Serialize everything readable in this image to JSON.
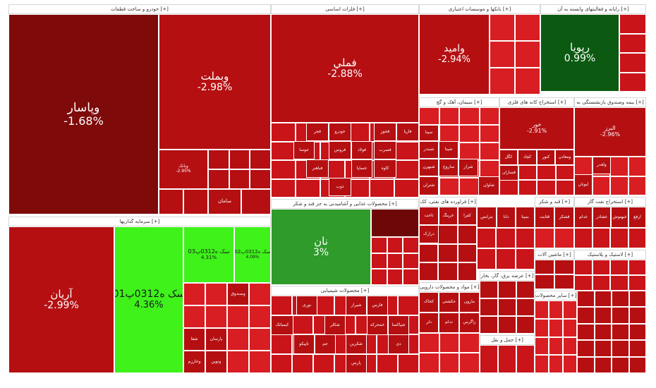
{
  "colors": {
    "deep_red": "#7e0a0a",
    "red": "#b50f12",
    "mid_red": "#c9141a",
    "bright_red": "#d81e22",
    "dark_green": "#0c5a12",
    "green": "#2e9b2a",
    "lime": "#3ef21a",
    "maroon": "#6e0808"
  },
  "chart_data": {
    "type": "treemap",
    "sections": [
      {
        "label": "خودرو و ساخت قطعات [+]"
      },
      {
        "label": "فلزات اساسی [+]"
      },
      {
        "label": "بانکها و موسسات اعتباری [+]"
      },
      {
        "label": "رایانه و فعالیتهای وابسته به آن [+]"
      },
      {
        "label": "سرمایه گذاریها [+]"
      },
      {
        "label": "محصولات غذایی و آشامیدنی به جز قند و شکر [+]"
      },
      {
        "label": "محصولات شیمیایی [+]"
      },
      {
        "label": "سیمان، آهک و گچ [+]"
      },
      {
        "label": "استخراج کانه های فلزی [+]"
      },
      {
        "label": "بیمه وصندوق بازنشستگی به [+]"
      },
      {
        "label": "مواد و محصولات دارویی [+]"
      },
      {
        "label": "فراورده های نفتی، کک [+]"
      },
      {
        "label": "عرضه برق، گاز، بخار [+]"
      },
      {
        "label": "قند و شکر [+]"
      },
      {
        "label": "استخراج نفت گاز [+]"
      },
      {
        "label": "ماشین آلات [+]"
      },
      {
        "label": "لاستیک و پلاستیک [+]"
      },
      {
        "label": "حمل و نقل [+]"
      },
      {
        "label": "سایر محصولات [+]"
      }
    ],
    "tiles": [
      {
        "name": "وپاسار",
        "change": "-1.68%"
      },
      {
        "name": "وبملت",
        "change": "-2.98%"
      },
      {
        "name": "فملي",
        "change": "-2.88%"
      },
      {
        "name": "وامید",
        "change": "-2.94%"
      },
      {
        "name": "رپویا",
        "change": "0.99%"
      },
      {
        "name": "آریان",
        "change": "-2.99%"
      },
      {
        "name": "سک ه0312پ01",
        "change": "4.36%"
      },
      {
        "name": "سک ه0312پ03",
        "change": "4.31%"
      },
      {
        "name": "سک ه0312پ02",
        "change": "4.09%"
      },
      {
        "name": "نان",
        "change": "3%"
      },
      {
        "name": "خور",
        "change": "-2.91%"
      },
      {
        "name": "البرز",
        "change": "-2.96%"
      },
      {
        "name": "وبانک",
        "change": "-2.95%"
      },
      {
        "name": "سامان",
        "change": ""
      },
      {
        "name": "فولاد",
        "change": ""
      },
      {
        "name": "فخوز",
        "change": ""
      },
      {
        "name": "خودرو",
        "change": ""
      },
      {
        "name": "فاریا",
        "change": ""
      },
      {
        "name": "فجر",
        "change": ""
      },
      {
        "name": "خساپا",
        "change": ""
      },
      {
        "name": "فسرب",
        "change": ""
      },
      {
        "name": "کاوه",
        "change": ""
      },
      {
        "name": "ذوب",
        "change": ""
      },
      {
        "name": "فباهنر",
        "change": ""
      },
      {
        "name": "شبندر",
        "change": ""
      },
      {
        "name": "شبهرن",
        "change": ""
      },
      {
        "name": "شتران",
        "change": ""
      },
      {
        "name": "شپنا",
        "change": ""
      },
      {
        "name": "شراز",
        "change": ""
      },
      {
        "name": "شاوان",
        "change": ""
      },
      {
        "name": "شیراز",
        "change": ""
      },
      {
        "name": "پارس",
        "change": ""
      },
      {
        "name": "فارس",
        "change": ""
      },
      {
        "name": "شکربن",
        "change": ""
      },
      {
        "name": "کگل",
        "change": ""
      },
      {
        "name": "کچاد",
        "change": ""
      },
      {
        "name": "کنور",
        "change": ""
      },
      {
        "name": "فسازان",
        "change": ""
      },
      {
        "name": "ساروج",
        "change": ""
      },
      {
        "name": "سپنا",
        "change": ""
      },
      {
        "name": "تاپیکو",
        "change": ""
      },
      {
        "name": "جم",
        "change": ""
      },
      {
        "name": "دی",
        "change": ""
      },
      {
        "name": "وخارزم",
        "change": ""
      },
      {
        "name": "ونوین",
        "change": ""
      },
      {
        "name": "وصندوق",
        "change": ""
      },
      {
        "name": "شفا",
        "change": ""
      },
      {
        "name": "پارسان",
        "change": ""
      },
      {
        "name": "لبوتان",
        "change": ""
      },
      {
        "name": "ولغدر",
        "change": ""
      },
      {
        "name": "فروس",
        "change": ""
      },
      {
        "name": "ثنوسا",
        "change": ""
      },
      {
        "name": "ومعادن",
        "change": ""
      },
      {
        "name": "بترانس",
        "change": ""
      },
      {
        "name": "دانا",
        "change": ""
      },
      {
        "name": "بمپنا",
        "change": ""
      },
      {
        "name": "ثاخت",
        "change": ""
      },
      {
        "name": "خرینگ",
        "change": ""
      },
      {
        "name": "کفرا",
        "change": ""
      },
      {
        "name": "درازک",
        "change": ""
      },
      {
        "name": "کخاک",
        "change": ""
      },
      {
        "name": "حکشتی",
        "change": ""
      },
      {
        "name": "مارون",
        "change": ""
      },
      {
        "name": "ددام",
        "change": ""
      },
      {
        "name": "دلر",
        "change": ""
      },
      {
        "name": "زاگرس",
        "change": ""
      },
      {
        "name": "نوری",
        "change": ""
      },
      {
        "name": "شکلر",
        "change": ""
      },
      {
        "name": "خمحرکه",
        "change": ""
      },
      {
        "name": "قثابت",
        "change": ""
      },
      {
        "name": "قشکر",
        "change": ""
      },
      {
        "name": "غدام",
        "change": ""
      },
      {
        "name": "غشاذر",
        "change": ""
      },
      {
        "name": "غبهنوش",
        "change": ""
      },
      {
        "name": "کیمیاتک",
        "change": ""
      },
      {
        "name": "شپاکسا",
        "change": ""
      },
      {
        "name": "ارفع",
        "change": ""
      }
    ]
  }
}
